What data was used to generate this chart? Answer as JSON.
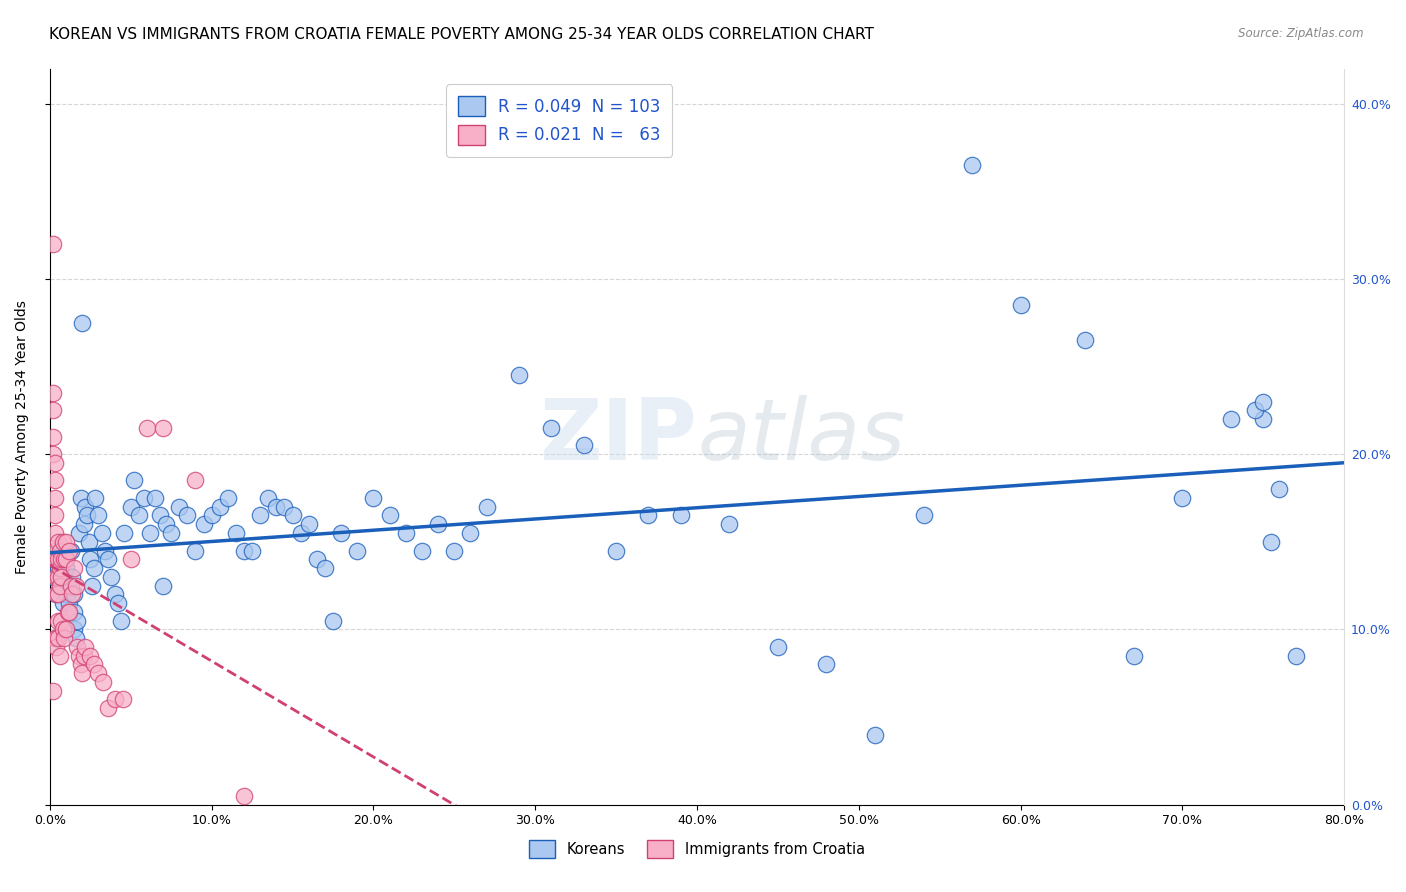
{
  "title": "KOREAN VS IMMIGRANTS FROM CROATIA FEMALE POVERTY AMONG 25-34 YEAR OLDS CORRELATION CHART",
  "source": "Source: ZipAtlas.com",
  "ylabel": "Female Poverty Among 25-34 Year Olds",
  "xlim": [
    0.0,
    0.8
  ],
  "ylim": [
    0.0,
    0.42
  ],
  "korean_R": 0.049,
  "korean_N": 103,
  "croatia_R": 0.021,
  "croatia_N": 63,
  "korean_color": "#aac8f0",
  "korea_line_color": "#1a5fba",
  "croatia_color": "#f8b0c8",
  "croatia_line_color": "#d04070",
  "watermark_zip": "ZIP",
  "watermark_atlas": "atlas",
  "legend_korean": "Koreans",
  "legend_croatia": "Immigrants from Croatia",
  "background_color": "#ffffff",
  "grid_color": "#cccccc",
  "title_fontsize": 11,
  "axis_label_fontsize": 10,
  "tick_fontsize": 9,
  "korean_x": [
    0.002,
    0.003,
    0.004,
    0.005,
    0.006,
    0.007,
    0.008,
    0.009,
    0.01,
    0.01,
    0.01,
    0.011,
    0.012,
    0.013,
    0.014,
    0.015,
    0.015,
    0.015,
    0.016,
    0.017,
    0.018,
    0.019,
    0.02,
    0.021,
    0.022,
    0.023,
    0.024,
    0.025,
    0.026,
    0.027,
    0.028,
    0.03,
    0.032,
    0.034,
    0.036,
    0.038,
    0.04,
    0.042,
    0.044,
    0.046,
    0.05,
    0.052,
    0.055,
    0.058,
    0.062,
    0.065,
    0.068,
    0.07,
    0.072,
    0.075,
    0.08,
    0.085,
    0.09,
    0.095,
    0.1,
    0.105,
    0.11,
    0.115,
    0.12,
    0.125,
    0.13,
    0.135,
    0.14,
    0.145,
    0.15,
    0.155,
    0.16,
    0.165,
    0.17,
    0.175,
    0.18,
    0.19,
    0.2,
    0.21,
    0.22,
    0.23,
    0.24,
    0.25,
    0.26,
    0.27,
    0.29,
    0.31,
    0.33,
    0.35,
    0.37,
    0.39,
    0.42,
    0.45,
    0.48,
    0.51,
    0.54,
    0.57,
    0.6,
    0.64,
    0.67,
    0.7,
    0.73,
    0.75,
    0.76,
    0.77,
    0.745,
    0.75,
    0.755
  ],
  "korean_y": [
    0.13,
    0.14,
    0.12,
    0.135,
    0.145,
    0.125,
    0.115,
    0.13,
    0.14,
    0.12,
    0.135,
    0.125,
    0.115,
    0.145,
    0.13,
    0.12,
    0.11,
    0.1,
    0.095,
    0.105,
    0.155,
    0.175,
    0.275,
    0.16,
    0.17,
    0.165,
    0.15,
    0.14,
    0.125,
    0.135,
    0.175,
    0.165,
    0.155,
    0.145,
    0.14,
    0.13,
    0.12,
    0.115,
    0.105,
    0.155,
    0.17,
    0.185,
    0.165,
    0.175,
    0.155,
    0.175,
    0.165,
    0.125,
    0.16,
    0.155,
    0.17,
    0.165,
    0.145,
    0.16,
    0.165,
    0.17,
    0.175,
    0.155,
    0.145,
    0.145,
    0.165,
    0.175,
    0.17,
    0.17,
    0.165,
    0.155,
    0.16,
    0.14,
    0.135,
    0.105,
    0.155,
    0.145,
    0.175,
    0.165,
    0.155,
    0.145,
    0.16,
    0.145,
    0.155,
    0.17,
    0.245,
    0.215,
    0.205,
    0.145,
    0.165,
    0.165,
    0.16,
    0.09,
    0.08,
    0.04,
    0.165,
    0.365,
    0.285,
    0.265,
    0.085,
    0.175,
    0.22,
    0.22,
    0.18,
    0.085,
    0.225,
    0.23,
    0.15
  ],
  "croatia_x": [
    0.002,
    0.002,
    0.002,
    0.002,
    0.002,
    0.002,
    0.003,
    0.003,
    0.003,
    0.003,
    0.003,
    0.003,
    0.003,
    0.004,
    0.004,
    0.004,
    0.004,
    0.004,
    0.005,
    0.005,
    0.005,
    0.005,
    0.005,
    0.005,
    0.006,
    0.006,
    0.006,
    0.006,
    0.007,
    0.007,
    0.007,
    0.008,
    0.008,
    0.009,
    0.009,
    0.01,
    0.01,
    0.01,
    0.011,
    0.012,
    0.012,
    0.013,
    0.014,
    0.015,
    0.016,
    0.017,
    0.018,
    0.019,
    0.02,
    0.021,
    0.022,
    0.025,
    0.027,
    0.03,
    0.033,
    0.036,
    0.04,
    0.045,
    0.05,
    0.06,
    0.07,
    0.09,
    0.12
  ],
  "croatia_y": [
    0.32,
    0.235,
    0.225,
    0.21,
    0.2,
    0.065,
    0.195,
    0.185,
    0.175,
    0.165,
    0.155,
    0.145,
    0.095,
    0.095,
    0.09,
    0.14,
    0.13,
    0.12,
    0.15,
    0.14,
    0.13,
    0.12,
    0.105,
    0.095,
    0.145,
    0.135,
    0.125,
    0.085,
    0.14,
    0.13,
    0.105,
    0.15,
    0.1,
    0.14,
    0.095,
    0.15,
    0.14,
    0.1,
    0.11,
    0.145,
    0.11,
    0.125,
    0.12,
    0.135,
    0.125,
    0.09,
    0.085,
    0.08,
    0.075,
    0.085,
    0.09,
    0.085,
    0.08,
    0.075,
    0.07,
    0.055,
    0.06,
    0.06,
    0.14,
    0.215,
    0.215,
    0.185,
    0.005
  ]
}
